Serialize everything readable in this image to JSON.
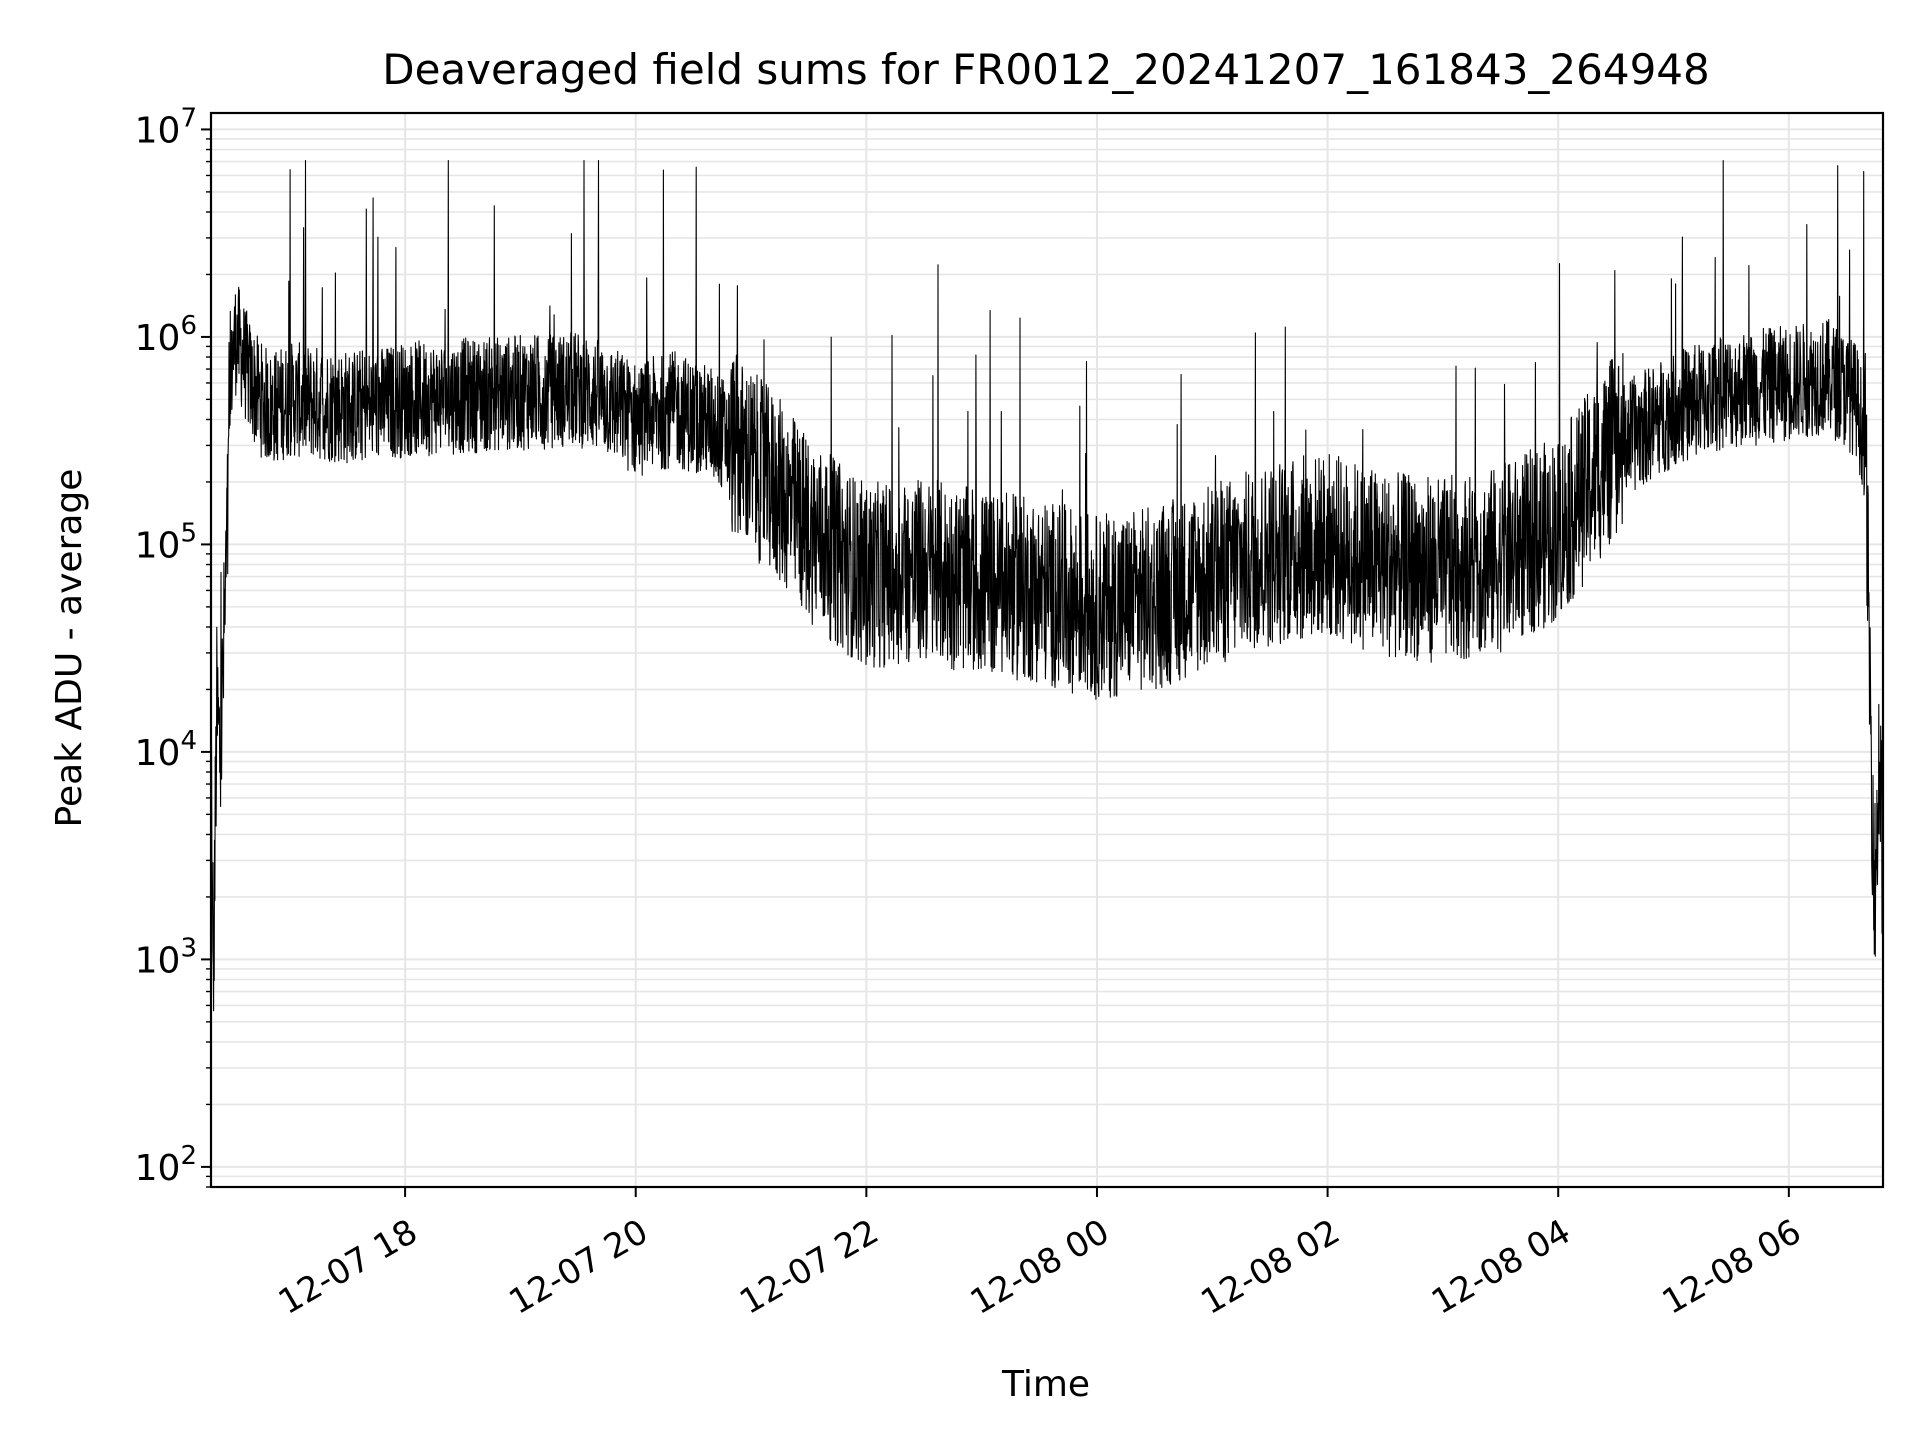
{
  "chart_data": {
    "type": "line",
    "title": "Deaveraged field sums for FR0012_20241207_161843_264948",
    "xlabel": "Time",
    "ylabel": "Peak ADU - average",
    "yscale": "log",
    "ylim": [
      80,
      12000000
    ],
    "xlim": [
      "2024-12-07 16:19",
      "2024-12-08 06:49"
    ],
    "grid": true,
    "line_color": "#000000",
    "grid_color": "#e6e6e6",
    "x_ticks": [
      {
        "label": "12-07 18",
        "value": "2024-12-07 18:00"
      },
      {
        "label": "12-07 20",
        "value": "2024-12-07 20:00"
      },
      {
        "label": "12-07 22",
        "value": "2024-12-07 22:00"
      },
      {
        "label": "12-08 00",
        "value": "2024-12-08 00:00"
      },
      {
        "label": "12-08 02",
        "value": "2024-12-08 02:00"
      },
      {
        "label": "12-08 04",
        "value": "2024-12-08 04:00"
      },
      {
        "label": "12-08 06",
        "value": "2024-12-08 06:00"
      }
    ],
    "y_ticks": [
      {
        "base": "10",
        "exp": "2",
        "value": 100
      },
      {
        "base": "10",
        "exp": "3",
        "value": 1000
      },
      {
        "base": "10",
        "exp": "4",
        "value": 10000
      },
      {
        "base": "10",
        "exp": "5",
        "value": 100000
      },
      {
        "base": "10",
        "exp": "6",
        "value": 1000000
      },
      {
        "base": "10",
        "exp": "7",
        "value": 10000000
      }
    ],
    "series": [
      {
        "values_estimated": true,
        "x": [
          "2024-12-07 16:19",
          "2024-12-07 16:20",
          "2024-12-07 16:22",
          "2024-12-07 16:24",
          "2024-12-07 16:26",
          "2024-12-07 16:28",
          "2024-12-07 16:30",
          "2024-12-07 16:32",
          "2024-12-07 16:34",
          "2024-12-07 16:40",
          "2024-12-07 16:45",
          "2024-12-07 16:50",
          "2024-12-07 17:00",
          "2024-12-07 17:15",
          "2024-12-07 17:30",
          "2024-12-07 17:45",
          "2024-12-07 18:00",
          "2024-12-07 18:30",
          "2024-12-07 19:00",
          "2024-12-07 19:30",
          "2024-12-07 19:45",
          "2024-12-07 20:00",
          "2024-12-07 20:20",
          "2024-12-07 20:40",
          "2024-12-07 21:00",
          "2024-12-07 21:15",
          "2024-12-07 21:30",
          "2024-12-07 21:45",
          "2024-12-07 22:00",
          "2024-12-07 22:30",
          "2024-12-07 23:00",
          "2024-12-07 23:30",
          "2024-12-08 00:00",
          "2024-12-08 00:30",
          "2024-12-08 01:00",
          "2024-12-08 01:30",
          "2024-12-08 02:00",
          "2024-12-08 02:30",
          "2024-12-08 03:00",
          "2024-12-08 03:30",
          "2024-12-08 04:00",
          "2024-12-08 04:30",
          "2024-12-08 05:00",
          "2024-12-08 05:30",
          "2024-12-08 06:00",
          "2024-12-08 06:20",
          "2024-12-08 06:35",
          "2024-12-08 06:40",
          "2024-12-08 06:43",
          "2024-12-08 06:45",
          "2024-12-08 06:47",
          "2024-12-08 06:49"
        ],
        "values": [
          20000,
          600,
          15000,
          9000,
          40000,
          150000,
          800000,
          1000000,
          900000,
          600000,
          500000,
          450000,
          500000,
          480000,
          460000,
          470000,
          500000,
          520000,
          540000,
          560000,
          500000,
          400000,
          450000,
          380000,
          250000,
          180000,
          120000,
          90000,
          70000,
          75000,
          65000,
          60000,
          50000,
          55000,
          70000,
          90000,
          100000,
          80000,
          75000,
          85000,
          120000,
          300000,
          450000,
          550000,
          600000,
          650000,
          500000,
          300000,
          8000,
          2000,
          10000,
          2500
        ]
      }
    ]
  }
}
